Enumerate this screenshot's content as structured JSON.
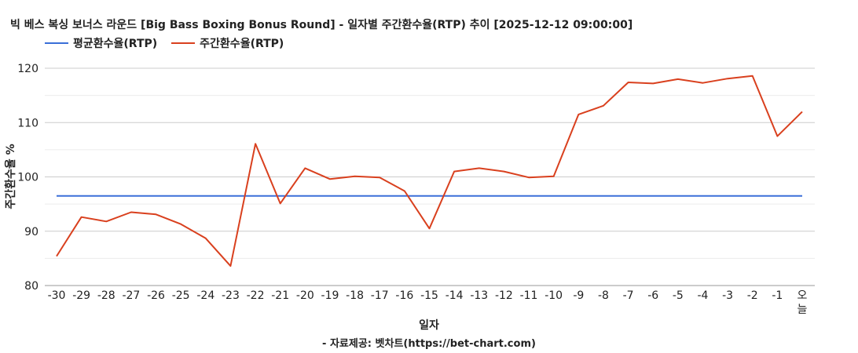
{
  "chart_data": {
    "type": "line",
    "title": "빅 베스 복싱 보너스 라운드 [Big Bass Boxing Bonus Round] - 일자별 주간환수율(RTP) 추이 [2025-12-12 09:00:00]",
    "xlabel": "일자",
    "ylabel": "주간환수율 %",
    "credit": "- 자료제공: 벳차트(https://bet-chart.com)",
    "ylim": [
      80,
      120
    ],
    "yticks": [
      80,
      90,
      100,
      110,
      120
    ],
    "grid": true,
    "legend_position": "top-left",
    "categories": [
      "-30",
      "-29",
      "-28",
      "-27",
      "-26",
      "-25",
      "-24",
      "-23",
      "-22",
      "-21",
      "-20",
      "-19",
      "-18",
      "-17",
      "-16",
      "-15",
      "-14",
      "-13",
      "-12",
      "-11",
      "-10",
      "-9",
      "-8",
      "-7",
      "-6",
      "-5",
      "-4",
      "-3",
      "-2",
      "-1",
      "오늘"
    ],
    "series": [
      {
        "name": "평균환수율(RTP)",
        "color": "#3a6fd8",
        "values": [
          96.5,
          96.5,
          96.5,
          96.5,
          96.5,
          96.5,
          96.5,
          96.5,
          96.5,
          96.5,
          96.5,
          96.5,
          96.5,
          96.5,
          96.5,
          96.5,
          96.5,
          96.5,
          96.5,
          96.5,
          96.5,
          96.5,
          96.5,
          96.5,
          96.5,
          96.5,
          96.5,
          96.5,
          96.5,
          96.5,
          96.5
        ]
      },
      {
        "name": "주간환수율(RTP)",
        "color": "#d9401e",
        "values": [
          85.4,
          92.6,
          91.8,
          93.5,
          93.1,
          91.3,
          88.7,
          83.6,
          106.1,
          95.1,
          101.6,
          99.6,
          100.1,
          99.9,
          97.4,
          90.5,
          101.0,
          101.6,
          101.0,
          99.9,
          100.1,
          111.5,
          113.1,
          117.4,
          117.2,
          118.0,
          117.3,
          118.1,
          118.6,
          107.5,
          112.0
        ]
      }
    ]
  }
}
